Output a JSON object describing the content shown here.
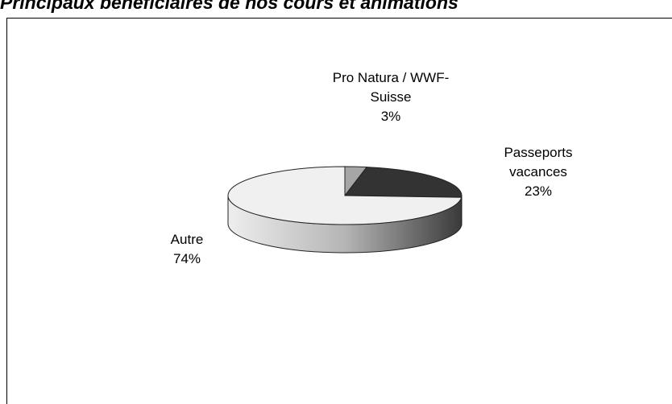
{
  "chart_data": {
    "type": "pie",
    "title": "Principaux bénéficiaires de nos cours et animations",
    "categories": [
      "Pro Natura / WWF-Suisse",
      "Passeports vacances",
      "Autre"
    ],
    "values": [
      3,
      23,
      74
    ],
    "value_labels": [
      "3%",
      "23%",
      "74%"
    ],
    "colors": [
      "#a6a6a6",
      "#333333",
      "#f0f0f0"
    ]
  }
}
